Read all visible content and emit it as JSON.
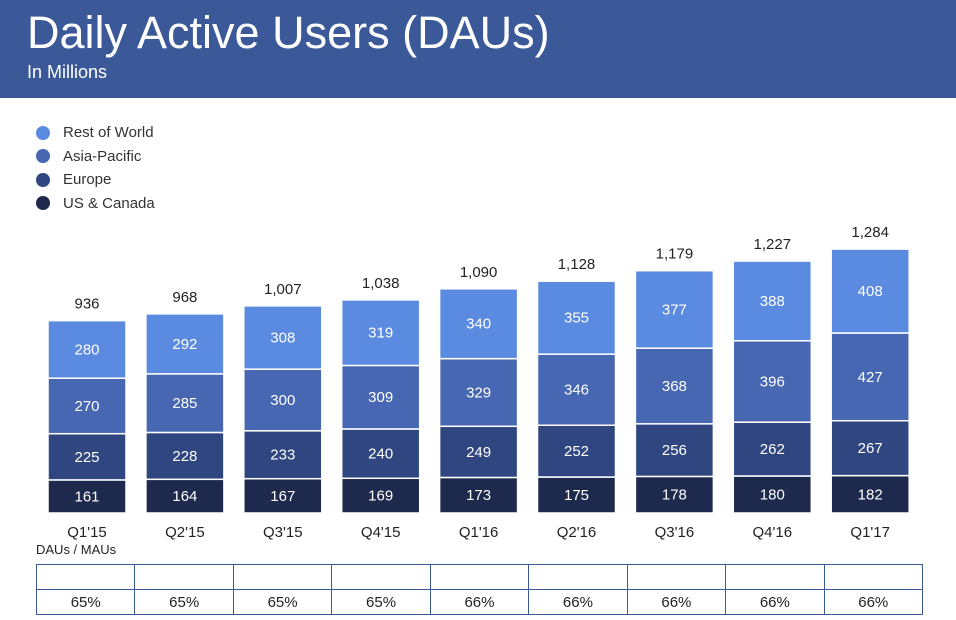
{
  "header": {
    "title": "Daily Active Users (DAUs)",
    "subtitle": "In Millions"
  },
  "colors": {
    "header_bg": "#3b5998",
    "rest_of_world": "#5b8be0",
    "asia_pacific": "#4767b2",
    "europe": "#2f4680",
    "us_canada": "#1d2a4e"
  },
  "chart_data": {
    "type": "bar",
    "stacked": true,
    "title": "Daily Active Users (DAUs)",
    "subtitle": "In Millions",
    "categories": [
      "Q1'15",
      "Q2'15",
      "Q3'15",
      "Q4'15",
      "Q1'16",
      "Q2'16",
      "Q3'16",
      "Q4'16",
      "Q1'17"
    ],
    "series": [
      {
        "name": "US & Canada",
        "values": [
          161,
          164,
          167,
          169,
          173,
          175,
          178,
          180,
          182
        ]
      },
      {
        "name": "Europe",
        "values": [
          225,
          228,
          233,
          240,
          249,
          252,
          256,
          262,
          267
        ]
      },
      {
        "name": "Asia-Pacific",
        "values": [
          270,
          285,
          300,
          309,
          329,
          346,
          368,
          396,
          427
        ]
      },
      {
        "name": "Rest of World",
        "values": [
          280,
          292,
          308,
          319,
          340,
          355,
          377,
          388,
          408
        ]
      }
    ],
    "totals": [
      "936",
      "968",
      "1,007",
      "1,038",
      "1,090",
      "1,128",
      "1,179",
      "1,227",
      "1,284"
    ],
    "legend": [
      "Rest of World",
      "Asia-Pacific",
      "Europe",
      "US & Canada"
    ],
    "legend_position": "top-left",
    "grid": false
  },
  "ratio_table": {
    "caption": "DAUs / MAUs",
    "values": [
      "65%",
      "65%",
      "65%",
      "65%",
      "66%",
      "66%",
      "66%",
      "66%",
      "66%"
    ]
  }
}
